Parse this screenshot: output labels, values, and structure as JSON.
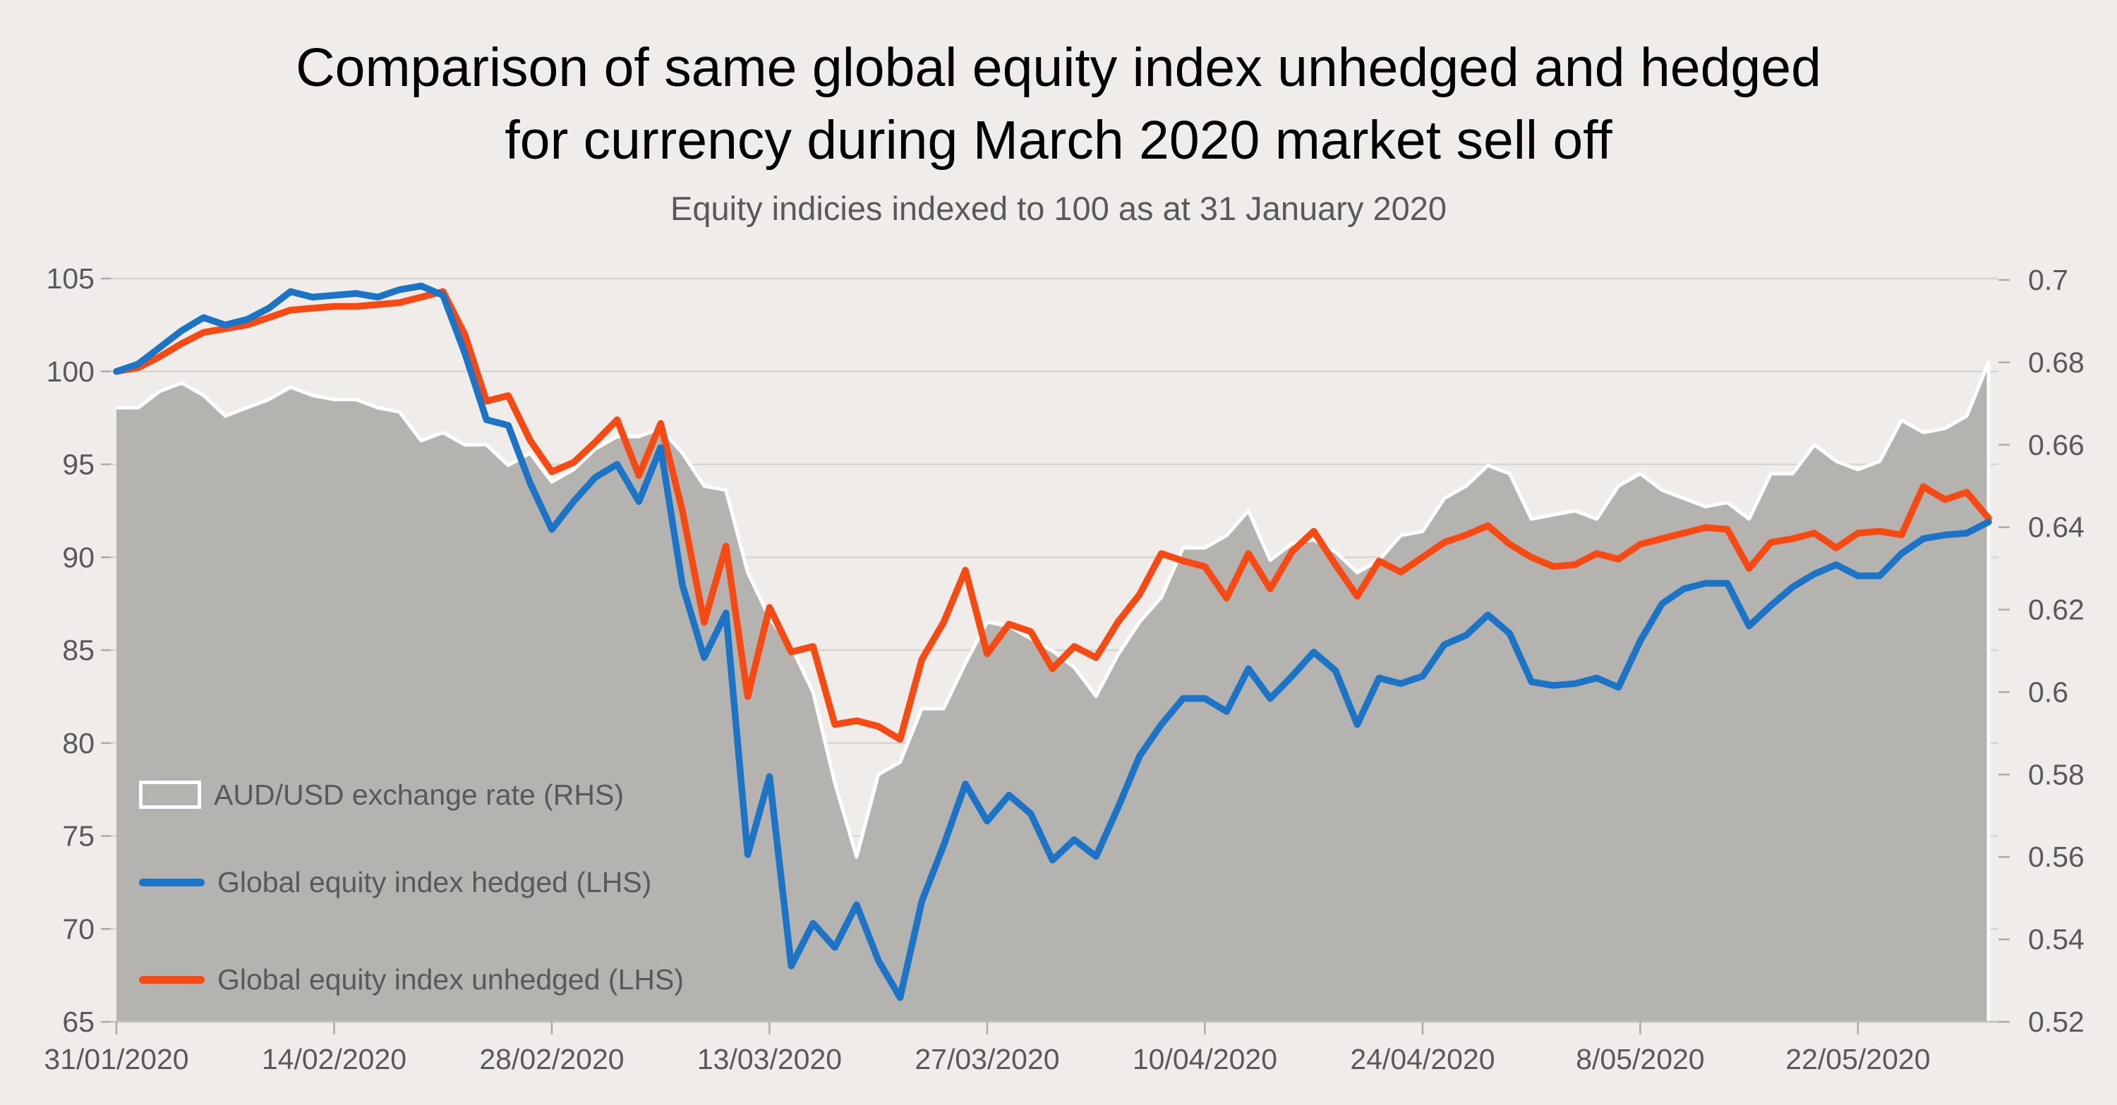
{
  "title": {
    "line1": "Comparison of same global equity index unhedged and hedged",
    "line2": "for currency during March 2020 market sell off"
  },
  "subtitle": "Equity indicies indexed to 100 as at 31 January 2020",
  "legend": [
    {
      "label": "AUD/USD exchange rate (RHS)",
      "swatch": "area-white-box"
    },
    {
      "label": "Global equity index hedged (LHS)",
      "swatch": "blue-line"
    },
    {
      "label": "Global equity index unhedged (LHS)",
      "swatch": "orange-line"
    }
  ],
  "colors": {
    "background": "#F0ECE9",
    "area_fill": "#B5B3B0",
    "area_edge": "#FFFFFF",
    "hedged_line": "#1B74C6",
    "unhedged_line": "#F64A12",
    "grid": "#D8D4D0",
    "baseline": "#C6C2BE",
    "tick": "#ADA9A5",
    "axis_text": "#595959",
    "title_text": "#000000"
  },
  "chart_data": {
    "type": "line",
    "frequency": "daily weekdays from 31/01/2020 to 01/06/2020 (87 points)",
    "x_tick_labels": [
      "31/01/2020",
      "14/02/2020",
      "28/02/2020",
      "13/03/2020",
      "27/03/2020",
      "10/04/2020",
      "24/04/2020",
      "8/05/2020",
      "22/05/2020"
    ],
    "x_tick_indices": [
      0,
      10,
      20,
      30,
      40,
      50,
      60,
      70,
      80
    ],
    "left_axis": {
      "min": 65,
      "max": 105,
      "tick_strings": [
        "105",
        "100",
        "95",
        "90",
        "85",
        "80",
        "75",
        "70",
        "65"
      ],
      "ticks": [
        105,
        100,
        95,
        90,
        85,
        80,
        75,
        70,
        65
      ]
    },
    "right_axis": {
      "min": 0.52,
      "max": 0.7,
      "tick_strings": [
        "0.7",
        "0.68",
        "0.66",
        "0.64",
        "0.62",
        "0.6",
        "0.58",
        "0.56",
        "0.54",
        "0.52"
      ],
      "ticks": [
        0.7,
        0.68,
        0.66,
        0.64,
        0.62,
        0.6,
        0.58,
        0.56,
        0.54,
        0.52
      ]
    },
    "legend_position": "inside-left",
    "grid": "horizontal only",
    "series": [
      {
        "name": "AUD/USD exchange rate (RHS)",
        "axis": "right",
        "type": "area",
        "values": [
          0.669,
          0.669,
          0.673,
          0.675,
          0.672,
          0.667,
          0.669,
          0.671,
          0.674,
          0.672,
          0.671,
          0.671,
          0.669,
          0.668,
          0.661,
          0.663,
          0.66,
          0.66,
          0.655,
          0.658,
          0.651,
          0.654,
          0.659,
          0.662,
          0.662,
          0.664,
          0.658,
          0.65,
          0.649,
          0.629,
          0.618,
          0.611,
          0.6,
          0.578,
          0.56,
          0.58,
          0.583,
          0.596,
          0.596,
          0.607,
          0.617,
          0.616,
          0.613,
          0.61,
          0.606,
          0.599,
          0.609,
          0.617,
          0.623,
          0.635,
          0.635,
          0.638,
          0.644,
          0.632,
          0.636,
          0.637,
          0.634,
          0.629,
          0.632,
          0.638,
          0.639,
          0.647,
          0.65,
          0.655,
          0.653,
          0.642,
          0.643,
          0.644,
          0.642,
          0.65,
          0.653,
          0.649,
          0.647,
          0.645,
          0.646,
          0.642,
          0.653,
          0.653,
          0.66,
          0.656,
          0.654,
          0.656,
          0.666,
          0.663,
          0.664,
          0.667,
          0.68
        ]
      },
      {
        "name": "Global equity index hedged (LHS)",
        "axis": "left",
        "type": "line",
        "values": [
          100.0,
          100.4,
          101.3,
          102.2,
          102.9,
          102.5,
          102.8,
          103.4,
          104.3,
          104.0,
          104.1,
          104.2,
          104.0,
          104.4,
          104.6,
          104.1,
          101.0,
          97.4,
          97.1,
          94.0,
          91.5,
          93.0,
          94.3,
          95.0,
          93.0,
          95.9,
          88.5,
          84.6,
          87.0,
          74.0,
          78.2,
          68.0,
          70.3,
          69.0,
          71.3,
          68.3,
          66.3,
          71.5,
          74.5,
          77.8,
          75.8,
          77.2,
          76.2,
          73.7,
          74.8,
          73.9,
          76.5,
          79.3,
          81.0,
          82.4,
          82.4,
          81.7,
          84.0,
          82.4,
          83.6,
          84.9,
          83.9,
          81.0,
          83.5,
          83.2,
          83.6,
          85.3,
          85.8,
          86.9,
          85.9,
          83.3,
          83.1,
          83.2,
          83.5,
          83.0,
          85.5,
          87.5,
          88.3,
          88.6,
          88.6,
          86.3,
          87.4,
          88.4,
          89.1,
          89.6,
          89.0,
          89.0,
          90.2,
          91.0,
          91.2,
          91.3,
          91.9
        ]
      },
      {
        "name": "Global equity index unhedged (LHS)",
        "axis": "left",
        "type": "line",
        "values": [
          100.0,
          100.2,
          100.8,
          101.5,
          102.1,
          102.3,
          102.5,
          102.9,
          103.3,
          103.4,
          103.5,
          103.5,
          103.6,
          103.7,
          104.0,
          104.3,
          102.0,
          98.4,
          98.7,
          96.3,
          94.6,
          95.1,
          96.2,
          97.4,
          94.4,
          97.2,
          92.5,
          86.5,
          90.6,
          82.5,
          87.3,
          84.9,
          85.2,
          81.0,
          81.2,
          80.9,
          80.2,
          84.5,
          86.5,
          89.3,
          84.8,
          86.4,
          86.0,
          84.0,
          85.2,
          84.6,
          86.5,
          88.0,
          90.2,
          89.8,
          89.5,
          87.8,
          90.2,
          88.3,
          90.3,
          91.4,
          89.6,
          87.9,
          89.8,
          89.2,
          90.0,
          90.8,
          91.2,
          91.7,
          90.7,
          90.0,
          89.5,
          89.6,
          90.2,
          89.9,
          90.7,
          91.0,
          91.3,
          91.6,
          91.5,
          89.4,
          90.8,
          91.0,
          91.3,
          90.5,
          91.3,
          91.4,
          91.2,
          93.8,
          93.1,
          93.5,
          92.1
        ]
      }
    ]
  }
}
